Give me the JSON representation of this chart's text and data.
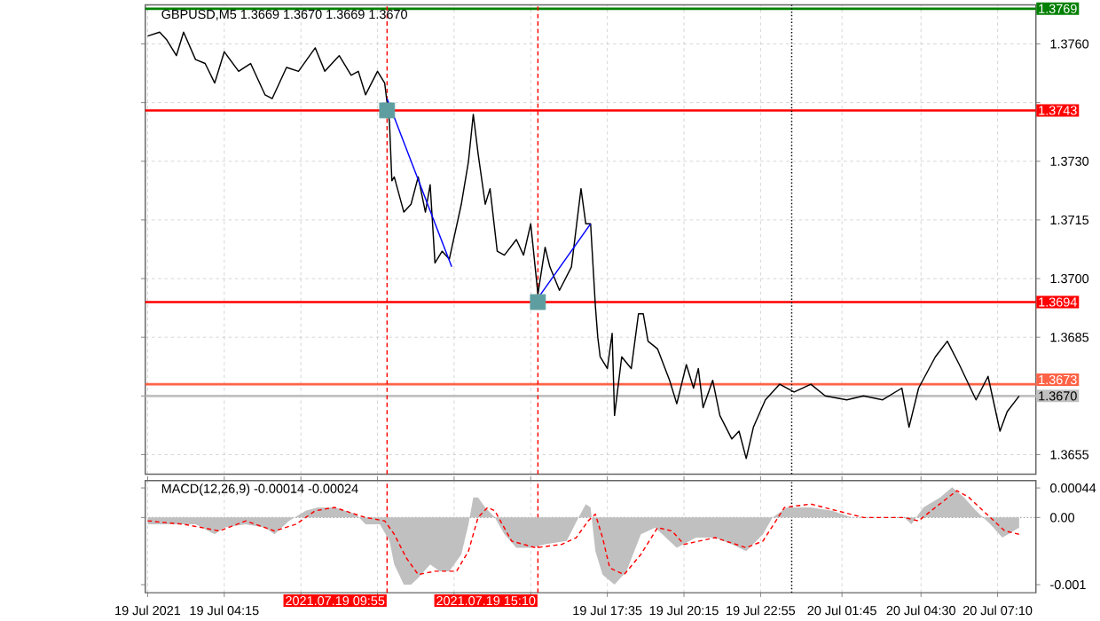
{
  "chart_data": [
    {
      "type": "line",
      "title": "GBPUSD,M5  1.3669 1.3670 1.3669 1.3670",
      "xlim": [
        "2021-07-19T01:30",
        "2021-07-20T08:30"
      ],
      "ylim": [
        1.365,
        1.377
      ],
      "xticks": [
        "2021-07-19T01:35",
        "2021-07-19T04:15",
        "2021-07-19T06:55",
        "2021-07-19T09:35",
        "2021-07-19T12:15",
        "2021-07-19T14:55",
        "2021-07-19T17:35",
        "2021-07-19T20:15",
        "2021-07-19T22:55",
        "2021-07-20T01:45",
        "2021-07-20T04:30",
        "2021-07-20T07:10"
      ],
      "yticks": [
        1.3655,
        {
          "value": 1.367,
          "label": null
        },
        1.3685,
        {
          "value": 1.37,
          "label": "1.3700"
        },
        1.3715,
        {
          "value": 1.373,
          "label": "1.3730"
        },
        {
          "value": 1.3745,
          "label": null
        },
        {
          "value": 1.376,
          "label": "1.3760"
        }
      ],
      "grid": true,
      "tick_labels": "y",
      "ref_lines": [
        {
          "axis": "y",
          "value": 1.3769,
          "label": "1.3769",
          "color": "#008000"
        },
        {
          "axis": "y",
          "value": 1.3743,
          "label": "1.3743",
          "color": "#ff0000"
        },
        {
          "axis": "y",
          "value": 1.3694,
          "label": "1.3694",
          "color": "#ff0000"
        },
        {
          "axis": "y",
          "value": 1.3673,
          "label": "1.3673",
          "color": "#ff6347"
        },
        {
          "axis": "y",
          "value": 1.367,
          "label": "1.3670",
          "color": "#c0c0c0"
        },
        {
          "axis": "x",
          "value": "2021-07-19T09:55",
          "color": "#ff0000",
          "line_style": "dashed"
        },
        {
          "axis": "x",
          "value": "2021-07-19T15:10",
          "color": "#ff0000",
          "line_style": "dashed"
        },
        {
          "axis": "x",
          "value": "2021-07-20T00:00",
          "color": "#000000",
          "line_style": "dotted"
        }
      ],
      "series": [
        {
          "type": "scatter",
          "marker": "square",
          "color": "#5f9ea0",
          "x": [
            "2021-07-19T09:55",
            "2021-07-19T15:10"
          ],
          "values": [
            1.3743,
            1.3694
          ]
        },
        {
          "color": "#000000",
          "x": [
            "2021-07-19T01:35",
            "2021-07-19T02:00",
            "2021-07-19T02:15",
            "2021-07-19T02:35",
            "2021-07-19T02:50",
            "2021-07-19T03:15",
            "2021-07-19T03:35",
            "2021-07-19T03:55",
            "2021-07-19T04:15",
            "2021-07-19T04:45",
            "2021-07-19T05:10",
            "2021-07-19T05:40",
            "2021-07-19T05:55",
            "2021-07-19T06:25",
            "2021-07-19T06:50",
            "2021-07-19T07:25",
            "2021-07-19T07:45",
            "2021-07-19T08:15",
            "2021-07-19T08:40",
            "2021-07-19T08:55",
            "2021-07-19T09:10",
            "2021-07-19T09:35",
            "2021-07-19T09:50",
            "2021-07-19T09:55",
            "2021-07-19T10:00",
            "2021-07-19T10:05",
            "2021-07-19T10:10",
            "2021-07-19T10:30",
            "2021-07-19T10:45",
            "2021-07-19T11:00",
            "2021-07-19T11:15",
            "2021-07-19T11:25",
            "2021-07-19T11:35",
            "2021-07-19T11:50",
            "2021-07-19T12:05",
            "2021-07-19T12:30",
            "2021-07-19T12:45",
            "2021-07-19T12:55",
            "2021-07-19T13:05",
            "2021-07-19T13:20",
            "2021-07-19T13:30",
            "2021-07-19T13:45",
            "2021-07-19T14:00",
            "2021-07-19T14:25",
            "2021-07-19T14:40",
            "2021-07-19T14:55",
            "2021-07-19T15:10",
            "2021-07-19T15:25",
            "2021-07-19T15:35",
            "2021-07-19T15:55",
            "2021-07-19T16:20",
            "2021-07-19T16:40",
            "2021-07-19T16:50",
            "2021-07-19T17:00",
            "2021-07-19T17:10",
            "2021-07-19T17:15",
            "2021-07-19T17:20",
            "2021-07-19T17:35",
            "2021-07-19T17:45",
            "2021-07-19T17:50",
            "2021-07-19T18:05",
            "2021-07-19T18:25",
            "2021-07-19T18:40",
            "2021-07-19T18:50",
            "2021-07-19T19:00",
            "2021-07-19T19:20",
            "2021-07-19T19:45",
            "2021-07-19T20:00",
            "2021-07-19T20:20",
            "2021-07-19T20:35",
            "2021-07-19T20:45",
            "2021-07-19T20:55",
            "2021-07-19T21:15",
            "2021-07-19T21:30",
            "2021-07-19T21:55",
            "2021-07-19T22:10",
            "2021-07-19T22:25",
            "2021-07-19T22:40",
            "2021-07-19T23:05",
            "2021-07-19T23:35",
            "2021-07-20T00:05",
            "2021-07-20T00:40",
            "2021-07-20T01:10",
            "2021-07-20T01:55",
            "2021-07-20T02:30",
            "2021-07-20T03:10",
            "2021-07-20T03:50",
            "2021-07-20T04:05",
            "2021-07-20T04:25",
            "2021-07-20T05:00",
            "2021-07-20T05:25",
            "2021-07-20T05:50",
            "2021-07-20T06:25",
            "2021-07-20T06:50",
            "2021-07-20T07:15",
            "2021-07-20T07:30",
            "2021-07-20T07:55"
          ],
          "values": [
            1.3762,
            1.3763,
            1.3761,
            1.3757,
            1.3763,
            1.3756,
            1.3755,
            1.375,
            1.3758,
            1.3753,
            1.3755,
            1.3747,
            1.3746,
            1.3754,
            1.3753,
            1.3759,
            1.3753,
            1.3757,
            1.3752,
            1.3753,
            1.3747,
            1.3753,
            1.375,
            1.3745,
            1.374,
            1.3725,
            1.3726,
            1.3717,
            1.3719,
            1.3726,
            1.3717,
            1.3724,
            1.3704,
            1.3707,
            1.3705,
            1.3719,
            1.373,
            1.3742,
            1.3732,
            1.3719,
            1.3723,
            1.3707,
            1.3706,
            1.371,
            1.3706,
            1.3714,
            1.3696,
            1.3708,
            1.3703,
            1.3697,
            1.3703,
            1.3723,
            1.3714,
            1.3714,
            1.3693,
            1.3685,
            1.368,
            1.3677,
            1.3686,
            1.3665,
            1.368,
            1.3677,
            1.3691,
            1.3691,
            1.3684,
            1.3682,
            1.3674,
            1.3668,
            1.3678,
            1.3672,
            1.3677,
            1.3667,
            1.3674,
            1.3665,
            1.3659,
            1.3661,
            1.3654,
            1.3662,
            1.3669,
            1.3673,
            1.3671,
            1.3673,
            1.367,
            1.3669,
            1.367,
            1.3669,
            1.3672,
            1.3662,
            1.3672,
            1.368,
            1.3684,
            1.3678,
            1.3669,
            1.3675,
            1.3661,
            1.3666,
            1.367
          ]
        },
        {
          "color": "#0000ff",
          "x": [
            "2021-07-19T09:55",
            "2021-07-19T12:10"
          ],
          "values": [
            1.3746,
            1.3703
          ]
        },
        {
          "color": "#0000ff",
          "x": [
            "2021-07-19T15:10",
            "2021-07-19T17:00"
          ],
          "values": [
            1.3695,
            1.3714
          ]
        }
      ]
    },
    {
      "type": "line",
      "title": "MACD(12,26,9) -0.00014 -0.00024",
      "xlim": [
        "2021-07-19T01:30",
        "2021-07-20T08:30"
      ],
      "ylim": [
        -0.00112,
        0.00055
      ],
      "xticks": [
        {
          "value": "2021-07-19T01:35",
          "label": "19 Jul 2021"
        },
        {
          "value": "2021-07-19T04:15",
          "label": "19 Jul 04:15"
        },
        {
          "value": "2021-07-19T06:55",
          "label": null
        },
        {
          "value": "2021-07-19T09:35",
          "label": null
        },
        {
          "value": "2021-07-19T12:15",
          "label": null
        },
        {
          "value": "2021-07-19T14:55",
          "label": null
        },
        {
          "value": "2021-07-19T17:35",
          "label": "19 Jul 17:35"
        },
        {
          "value": "2021-07-19T20:15",
          "label": "19 Jul 20:15"
        },
        {
          "value": "2021-07-19T22:55",
          "label": "19 Jul 22:55"
        },
        {
          "value": "2021-07-20T01:45",
          "label": "20 Jul 01:45"
        },
        {
          "value": "2021-07-20T04:30",
          "label": "20 Jul 04:30"
        },
        {
          "value": "2021-07-20T07:10",
          "label": "20 Jul 07:10"
        }
      ],
      "yticks": [
        {
          "value": -0.001,
          "label": "-0.001"
        },
        {
          "value": 0,
          "label": "0.00"
        },
        0.00044
      ],
      "grid": "x",
      "ref_lines": [
        {
          "axis": "y",
          "value": 0,
          "color": "#a0a0a0",
          "line_style": "dotted"
        },
        {
          "axis": "x",
          "value": "2021-07-19T09:55",
          "label": "2021.07.19 09:55",
          "color": "#ff0000",
          "line_style": "dashed"
        },
        {
          "axis": "x",
          "value": "2021-07-19T15:10",
          "label": "2021.07.19 15:10",
          "color": "#ff0000",
          "line_style": "dashed"
        },
        {
          "axis": "x",
          "value": "2021-07-20T00:00",
          "color": "#000000",
          "line_style": "dotted"
        }
      ],
      "series": [
        {
          "type": "area",
          "color": "#c0c0c0",
          "x": [
            "2021-07-19T01:35",
            "2021-07-19T02:30",
            "2021-07-19T03:15",
            "2021-07-19T03:55",
            "2021-07-19T04:15",
            "2021-07-19T05:00",
            "2021-07-19T05:40",
            "2021-07-19T06:00",
            "2021-07-19T06:30",
            "2021-07-19T07:05",
            "2021-07-19T07:30",
            "2021-07-19T08:05",
            "2021-07-19T08:50",
            "2021-07-19T09:10",
            "2021-07-19T09:40",
            "2021-07-19T10:00",
            "2021-07-19T10:10",
            "2021-07-19T10:30",
            "2021-07-19T10:45",
            "2021-07-19T11:00",
            "2021-07-19T11:25",
            "2021-07-19T11:45",
            "2021-07-19T12:05",
            "2021-07-19T12:30",
            "2021-07-19T12:45",
            "2021-07-19T12:55",
            "2021-07-19T13:05",
            "2021-07-19T13:20",
            "2021-07-19T13:40",
            "2021-07-19T14:00",
            "2021-07-19T14:25",
            "2021-07-19T14:55",
            "2021-07-19T15:25",
            "2021-07-19T16:10",
            "2021-07-19T16:35",
            "2021-07-19T16:50",
            "2021-07-19T17:00",
            "2021-07-19T17:10",
            "2021-07-19T17:25",
            "2021-07-19T17:50",
            "2021-07-19T18:15",
            "2021-07-19T18:45",
            "2021-07-19T19:15",
            "2021-07-19T20:00",
            "2021-07-19T20:40",
            "2021-07-19T21:20",
            "2021-07-19T21:55",
            "2021-07-19T22:25",
            "2021-07-19T23:00",
            "2021-07-19T23:20",
            "2021-07-19T23:50",
            "2021-07-20T00:40",
            "2021-07-20T01:25",
            "2021-07-20T02:05",
            "2021-07-20T03:10",
            "2021-07-20T03:55",
            "2021-07-20T04:10",
            "2021-07-20T04:35",
            "2021-07-20T05:10",
            "2021-07-20T05:35",
            "2021-07-20T06:00",
            "2021-07-20T06:25",
            "2021-07-20T06:55",
            "2021-07-20T07:20",
            "2021-07-20T07:55"
          ],
          "values": [
            -0.0001,
            -0.0001,
            -0.0001,
            -0.00025,
            -0.00015,
            -0.0001,
            -0.00015,
            -0.00025,
            -5e-05,
            0.0001,
            0.00015,
            0.00015,
            5e-05,
            -0.0001,
            -0.0001,
            -0.00035,
            -0.0007,
            -0.001,
            -0.001,
            -0.0009,
            -0.0007,
            -0.0008,
            -0.0008,
            -0.00055,
            -0.0001,
            0.0003,
            0.0003,
            0.00015,
            0,
            -0.00025,
            -0.00045,
            -0.00045,
            -0.0004,
            -0.00035,
            0,
            0.0002,
            0.00015,
            -0.0005,
            -0.00085,
            -0.001,
            -0.0008,
            -0.00025,
            -0.00015,
            -0.00045,
            -0.0003,
            -0.0003,
            -0.0004,
            -0.0005,
            -0.00025,
            0,
            0.00015,
            0.00015,
            0.0001,
            0,
            0,
            0,
            -0.0001,
            0.00015,
            0.0003,
            0.00045,
            0.0003,
            0.0001,
            -0.0001,
            -0.0003,
            -0.00015
          ]
        },
        {
          "color": "#ff0000",
          "line_style": "dashed",
          "x": [
            "2021-07-19T01:35",
            "2021-07-19T02:50",
            "2021-07-19T04:05",
            "2021-07-19T05:00",
            "2021-07-19T06:00",
            "2021-07-19T06:45",
            "2021-07-19T07:25",
            "2021-07-19T08:05",
            "2021-07-19T09:10",
            "2021-07-19T09:50",
            "2021-07-19T10:10",
            "2021-07-19T10:35",
            "2021-07-19T11:00",
            "2021-07-19T11:35",
            "2021-07-19T12:20",
            "2021-07-19T12:45",
            "2021-07-19T13:05",
            "2021-07-19T13:25",
            "2021-07-19T13:40",
            "2021-07-19T14:15",
            "2021-07-19T15:05",
            "2021-07-19T16:00",
            "2021-07-19T16:30",
            "2021-07-19T16:55",
            "2021-07-19T17:10",
            "2021-07-19T17:25",
            "2021-07-19T17:40",
            "2021-07-19T18:10",
            "2021-07-19T18:45",
            "2021-07-19T19:20",
            "2021-07-19T19:50",
            "2021-07-19T20:15",
            "2021-07-19T21:20",
            "2021-07-19T22:25",
            "2021-07-19T23:00",
            "2021-07-19T23:45",
            "2021-07-20T00:40",
            "2021-07-20T01:35",
            "2021-07-20T02:30",
            "2021-07-20T03:55",
            "2021-07-20T04:25",
            "2021-07-20T05:00",
            "2021-07-20T05:45",
            "2021-07-20T06:10",
            "2021-07-20T06:55",
            "2021-07-20T07:25",
            "2021-07-20T07:55"
          ],
          "values": [
            -5e-05,
            -0.0001,
            -0.0002,
            -5e-05,
            -0.0002,
            -0.0001,
            0.0001,
            0.00015,
            0,
            -5e-05,
            -0.00025,
            -0.0006,
            -0.00085,
            -0.0008,
            -0.0008,
            -0.0005,
            0,
            0.00015,
            0.0001,
            -0.00035,
            -0.00045,
            -0.0004,
            -0.0003,
            -5e-05,
            5e-05,
            -0.0003,
            -0.00075,
            -0.00085,
            -0.00055,
            -0.00015,
            -0.0002,
            -0.0004,
            -0.0003,
            -0.00045,
            -0.00035,
            0.00015,
            0.0002,
            0.0001,
            0,
            0,
            -5e-05,
            0.00015,
            0.0004,
            0.0003,
            0,
            -0.0002,
            -0.00025
          ]
        }
      ]
    }
  ]
}
